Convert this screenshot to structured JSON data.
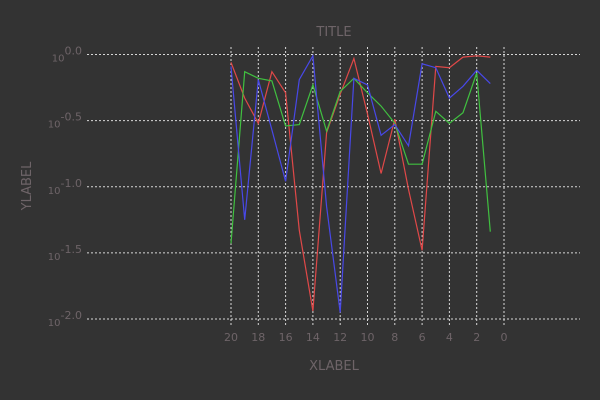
{
  "chart_data": {
    "type": "line",
    "title": "TITLE",
    "xlabel": "XLABEL",
    "ylabel": "YLABEL",
    "xlim": [
      20,
      0
    ],
    "x_reversed": true,
    "ylim": [
      0.01,
      1
    ],
    "yscale": "log",
    "grid": true,
    "x_ticks": [
      20,
      18,
      16,
      14,
      12,
      10,
      8,
      6,
      4,
      2,
      0
    ],
    "y_ticks": [
      {
        "value": 1,
        "base": "10",
        "exp": "0.0"
      },
      {
        "value": 0.316,
        "base": "10",
        "exp": "-0.5"
      },
      {
        "value": 0.1,
        "base": "10",
        "exp": "-1.0"
      },
      {
        "value": 0.0316,
        "base": "10",
        "exp": "-1.5"
      },
      {
        "value": 0.01,
        "base": "10",
        "exp": "-2.0"
      }
    ],
    "x": [
      20,
      19,
      18,
      17,
      16,
      15,
      14,
      13,
      12,
      11,
      10,
      9,
      8,
      7,
      6,
      5,
      4,
      3,
      2,
      1
    ],
    "series": [
      {
        "color": "#e04848",
        "values": [
          0.871,
          0.468,
          0.302,
          0.741,
          0.513,
          0.0468,
          0.0115,
          0.257,
          0.501,
          0.933,
          0.355,
          0.126,
          0.324,
          0.0955,
          0.0331,
          0.813,
          0.794,
          0.955,
          0.977,
          0.955
        ]
      },
      {
        "color": "#40c040",
        "values": [
          0.0372,
          0.741,
          0.661,
          0.631,
          0.288,
          0.295,
          0.589,
          0.263,
          0.525,
          0.661,
          0.513,
          0.407,
          0.302,
          0.148,
          0.148,
          0.372,
          0.302,
          0.363,
          0.724,
          0.0457
        ]
      },
      {
        "color": "#4848e8",
        "values": [
          0.813,
          0.0562,
          0.646,
          0.269,
          0.11,
          0.646,
          0.977,
          0.0708,
          0.0112,
          0.661,
          0.589,
          0.245,
          0.295,
          0.204,
          0.851,
          0.794,
          0.468,
          0.575,
          0.759,
          0.603
        ]
      }
    ]
  }
}
